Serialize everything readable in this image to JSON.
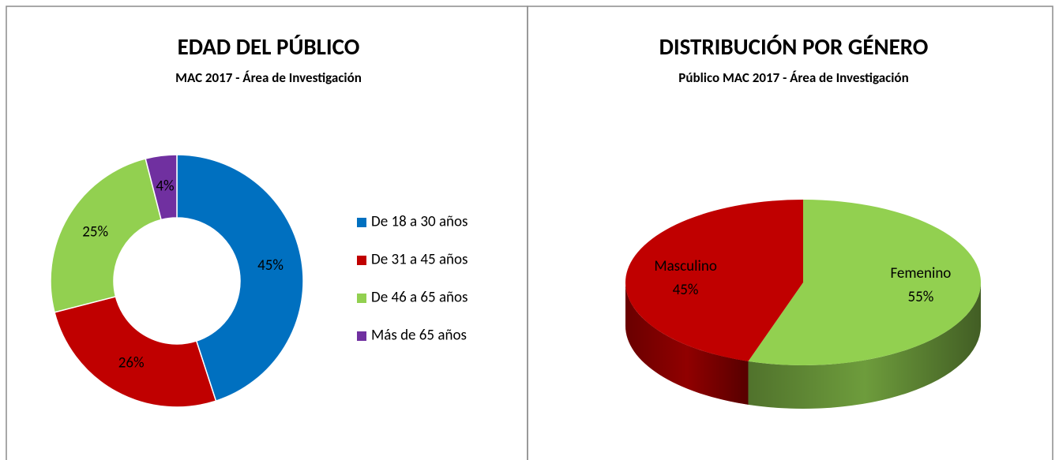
{
  "chart_data": [
    {
      "type": "donut",
      "title": "EDAD DEL PÚBLICO",
      "subtitle": "MAC 2017 - Área de Investigación",
      "categories": [
        "De 18 a 30 años",
        "De 31 a 45 años",
        "De 46 a 65 años",
        "Más de 65 años"
      ],
      "values": [
        45,
        26,
        25,
        4
      ],
      "value_labels": [
        "45%",
        "26%",
        "25%",
        "4%"
      ],
      "colors": [
        "#0070c0",
        "#c00000",
        "#92d050",
        "#7030a0"
      ],
      "legend": "right"
    },
    {
      "type": "pie3d",
      "title": "DISTRIBUCIÓN POR GÉNERO",
      "subtitle": "Público MAC 2017 - Área de Investigación",
      "categories": [
        "Femenino",
        "Masculino"
      ],
      "values": [
        55,
        45
      ],
      "value_labels": [
        "55%",
        "45%"
      ],
      "colors": [
        "#92d050",
        "#c00000"
      ],
      "legend": "none"
    }
  ]
}
